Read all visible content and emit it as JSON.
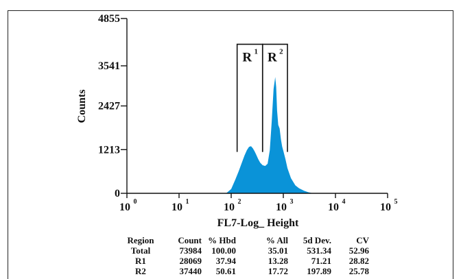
{
  "chart_data": {
    "type": "area",
    "title": "",
    "xlabel": "FL7-Log_ Height",
    "ylabel": "Counts",
    "x_scale": "log",
    "xlim": [
      1,
      100000
    ],
    "ylim": [
      0,
      4855
    ],
    "y_ticks": [
      "0",
      "1213",
      "2427",
      "3541",
      "4855"
    ],
    "x_tick_bases": [
      "10",
      "10",
      "10",
      "10",
      "10",
      "10"
    ],
    "x_tick_exps": [
      "0",
      "1",
      "2",
      "3",
      "4",
      "5"
    ],
    "fill_color": "#0a93d8",
    "x": [
      80,
      100,
      120,
      140,
      160,
      180,
      200,
      220,
      240,
      260,
      280,
      300,
      330,
      360,
      400,
      450,
      500,
      550,
      600,
      650,
      700,
      730,
      760,
      800,
      850,
      900,
      950,
      1000,
      1100,
      1200,
      1400,
      1700,
      2000,
      2500,
      3000,
      3500,
      4000
    ],
    "y": [
      0,
      120,
      380,
      620,
      850,
      1050,
      1200,
      1290,
      1310,
      1250,
      1170,
      1080,
      950,
      850,
      780,
      760,
      820,
      1200,
      2000,
      2900,
      3230,
      2950,
      2300,
      1900,
      1800,
      1500,
      1300,
      1180,
      950,
      700,
      420,
      220,
      140,
      70,
      30,
      10,
      0
    ],
    "gates": [
      {
        "label": "R",
        "superscript": "1",
        "x_start": 130,
        "x_end": 400,
        "bracket_top": 4140,
        "bracket_bottom": 1150
      },
      {
        "label": "R",
        "superscript": "2",
        "x_start": 400,
        "x_end": 1200,
        "bracket_top": 4140,
        "bracket_bottom": 1150
      }
    ]
  },
  "stats_table": {
    "headers": [
      "Region",
      "Count",
      "% Hbd",
      "% All",
      "5d Dev.",
      "CV"
    ],
    "rows": [
      [
        "Total",
        "73984",
        "100.00",
        "35.01",
        "531.34",
        "52.96"
      ],
      [
        "R1",
        "28069",
        "37.94",
        "13.28",
        "71.21",
        "28.82"
      ],
      [
        "R2",
        "37440",
        "50.61",
        "17.72",
        "197.89",
        "25.78"
      ]
    ]
  }
}
